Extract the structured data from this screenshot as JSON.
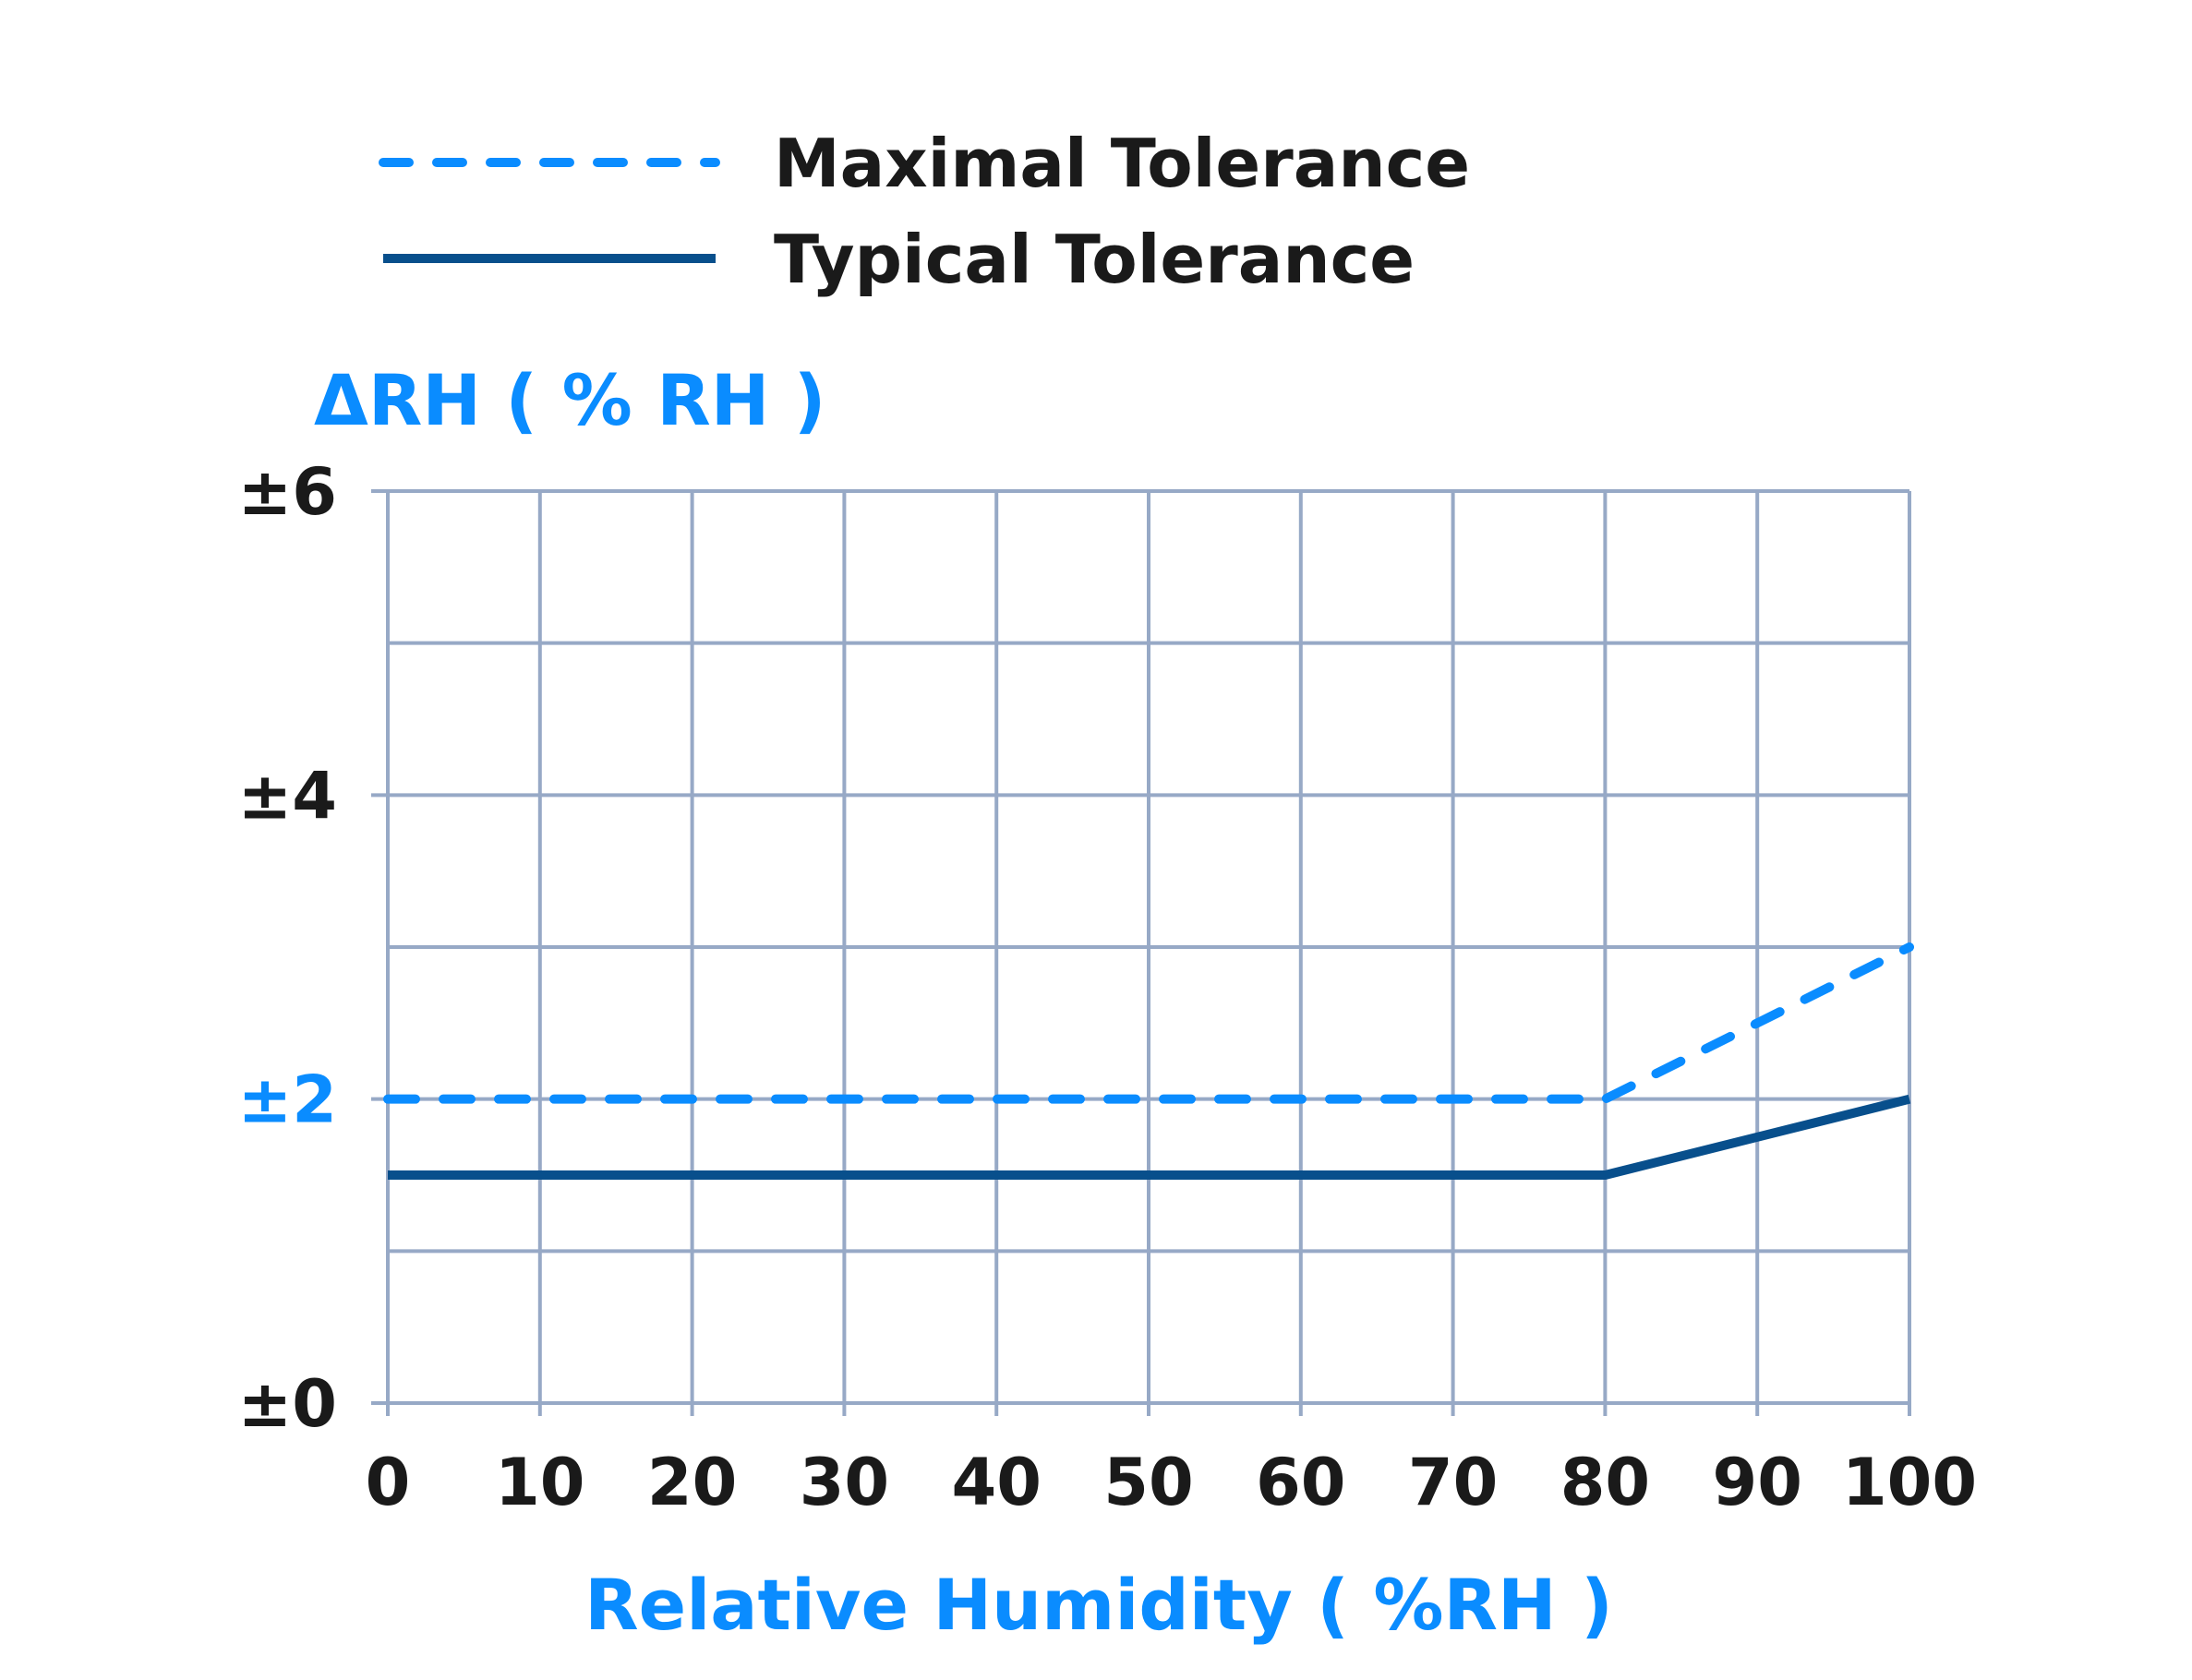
{
  "chart_data": {
    "type": "line",
    "title": "",
    "xlabel": "Relative Humidity ( %RH )",
    "ylabel": "ΔRH ( % RH )",
    "xlim": [
      0,
      100
    ],
    "ylim": [
      0,
      6
    ],
    "x_ticks": [
      0,
      10,
      20,
      30,
      40,
      50,
      60,
      70,
      80,
      90,
      100
    ],
    "x_tick_labels": [
      "0",
      "10",
      "20",
      "30",
      "40",
      "50",
      "60",
      "70",
      "80",
      "90",
      "100"
    ],
    "y_ticks": [
      0,
      2,
      4,
      6
    ],
    "y_tick_labels": [
      "±0",
      "±2",
      "±4",
      "±6"
    ],
    "y_highlight_tick": "±2",
    "grid": true,
    "legend_position": "top-left",
    "series": [
      {
        "name": "Maximal Tolerance",
        "style": "dashed",
        "color": "#0a8cff",
        "points": [
          [
            0,
            2
          ],
          [
            80,
            2
          ],
          [
            100,
            3
          ]
        ]
      },
      {
        "name": "Typical Tolerance",
        "style": "solid",
        "color": "#084f8c",
        "points": [
          [
            0,
            1.5
          ],
          [
            80,
            1.5
          ],
          [
            100,
            2
          ]
        ]
      }
    ],
    "colors": {
      "grid": "#97a9c6",
      "tick_text": "#1a1a1a",
      "accent": "#0a8cff"
    }
  }
}
